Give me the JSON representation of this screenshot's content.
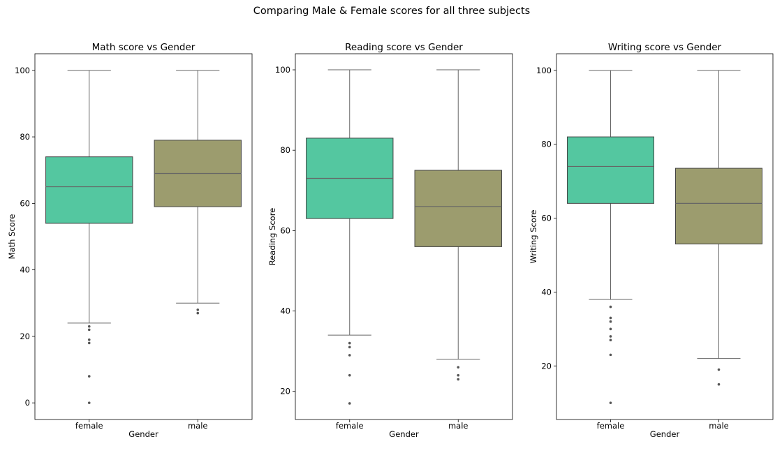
{
  "figure": {
    "title": "Comparing Male & Female scores for all three subjects"
  },
  "chart_data": [
    {
      "type": "box",
      "title": "Math score vs Gender",
      "xlabel": "Gender",
      "ylabel": "Math Score",
      "categories": [
        "female",
        "male"
      ],
      "ylim": [
        -5,
        105
      ],
      "yticks": [
        0,
        20,
        40,
        60,
        80,
        100
      ],
      "boxes": [
        {
          "category": "female",
          "whislo": 24,
          "q1": 54,
          "med": 65,
          "q3": 74,
          "whishi": 100,
          "fliers": [
            0,
            8,
            18,
            19,
            22,
            23
          ],
          "color": "#54c7a0"
        },
        {
          "category": "male",
          "whislo": 30,
          "q1": 59,
          "med": 69,
          "q3": 79,
          "whishi": 100,
          "fliers": [
            27,
            28
          ],
          "color": "#9c9c6e"
        }
      ]
    },
    {
      "type": "box",
      "title": "Reading score vs Gender",
      "xlabel": "Gender",
      "ylabel": "Reading Score",
      "categories": [
        "female",
        "male"
      ],
      "ylim": [
        13,
        104
      ],
      "yticks": [
        20,
        40,
        60,
        80,
        100
      ],
      "boxes": [
        {
          "category": "female",
          "whislo": 34,
          "q1": 63,
          "med": 73,
          "q3": 83,
          "whishi": 100,
          "fliers": [
            17,
            24,
            29,
            31,
            32
          ],
          "color": "#54c7a0"
        },
        {
          "category": "male",
          "whislo": 28,
          "q1": 56,
          "med": 66,
          "q3": 75,
          "whishi": 100,
          "fliers": [
            23,
            24,
            26
          ],
          "color": "#9c9c6e"
        }
      ]
    },
    {
      "type": "box",
      "title": "Writing score vs Gender",
      "xlabel": "Gender",
      "ylabel": "Writing Score",
      "categories": [
        "female",
        "male"
      ],
      "ylim": [
        5.5,
        104.5
      ],
      "yticks": [
        20,
        40,
        60,
        80,
        100
      ],
      "boxes": [
        {
          "category": "female",
          "whislo": 38,
          "q1": 64,
          "med": 74,
          "q3": 82,
          "whishi": 100,
          "fliers": [
            10,
            23,
            27,
            28,
            30,
            32,
            33,
            36
          ],
          "color": "#54c7a0"
        },
        {
          "category": "male",
          "whislo": 22,
          "q1": 53,
          "med": 64,
          "q3": 73.5,
          "whishi": 100,
          "fliers": [
            15,
            19
          ],
          "color": "#9c9c6e"
        }
      ]
    }
  ]
}
